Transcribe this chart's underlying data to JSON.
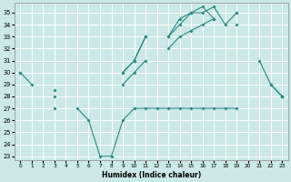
{
  "xlabel": "Humidex (Indice chaleur)",
  "x_values": [
    0,
    1,
    2,
    3,
    4,
    5,
    6,
    7,
    8,
    9,
    10,
    11,
    12,
    13,
    14,
    15,
    16,
    17,
    18,
    19,
    20,
    21,
    22,
    23
  ],
  "line1": [
    30,
    29,
    null,
    null,
    null,
    null,
    null,
    null,
    null,
    30,
    31,
    33,
    null,
    33,
    34.5,
    35,
    35,
    35.5,
    34,
    35,
    null,
    31,
    29,
    28
  ],
  "line2": [
    30,
    null,
    null,
    28.5,
    null,
    null,
    null,
    null,
    null,
    30,
    31,
    33,
    null,
    33,
    34,
    35,
    35.5,
    34.5,
    null,
    35,
    null,
    null,
    29,
    28
  ],
  "line3": [
    null,
    null,
    null,
    28,
    null,
    null,
    null,
    null,
    null,
    29,
    30,
    31,
    null,
    32,
    33,
    33.5,
    34,
    34.5,
    null,
    34,
    null,
    null,
    null,
    null
  ],
  "line4": [
    null,
    null,
    null,
    27,
    null,
    27,
    26,
    23,
    23,
    26,
    27,
    27,
    27,
    27,
    27,
    27,
    27,
    27,
    27,
    27,
    null,
    null,
    null,
    28
  ],
  "ylim_min": 23,
  "ylim_max": 35.8,
  "yticks": [
    23,
    24,
    25,
    26,
    27,
    28,
    29,
    30,
    31,
    32,
    33,
    34,
    35
  ],
  "xlim_min": -0.5,
  "xlim_max": 23.5,
  "line_color": "#2a8a82",
  "bg_color": "#cce8e8",
  "grid_color": "#ffffff"
}
